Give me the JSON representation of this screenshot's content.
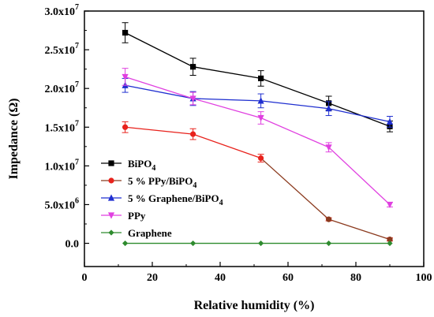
{
  "chart_data": {
    "type": "line",
    "xlabel": "Relative humidity (%)",
    "ylabel": "Impedance  (Ω)",
    "xlim": [
      0,
      100
    ],
    "ylim": [
      -3000000,
      30000000
    ],
    "x_ticks": [
      0,
      20,
      40,
      60,
      80,
      100
    ],
    "x_tick_labels": [
      "0",
      "20",
      "40",
      "60",
      "80",
      "100"
    ],
    "y_ticks": [
      0,
      5000000,
      10000000,
      15000000,
      20000000,
      25000000,
      30000000
    ],
    "y_tick_labels": [
      {
        "mantissa": "0.0",
        "exp": ""
      },
      {
        "mantissa": "5.0x10",
        "exp": "6"
      },
      {
        "mantissa": "1.0x10",
        "exp": "7"
      },
      {
        "mantissa": "1.5x10",
        "exp": "7"
      },
      {
        "mantissa": "2.0x10",
        "exp": "7"
      },
      {
        "mantissa": "2.5x10",
        "exp": "7"
      },
      {
        "mantissa": "3.0x10",
        "exp": "7"
      }
    ],
    "grid": false,
    "legend_position": "lower-left",
    "x": [
      12,
      32,
      52,
      72,
      90
    ],
    "series": [
      {
        "name": "BiPO",
        "name_sub": "4",
        "color": "#000000",
        "marker": "square",
        "values": [
          27200000,
          22800000,
          21300000,
          18100000,
          15100000
        ],
        "errors": [
          1300000,
          1100000,
          1000000,
          900000,
          700000
        ]
      },
      {
        "name": "5 % PPy/BiPO",
        "name_sub": "4",
        "color": "#e8221c",
        "color2": "#8b3a1e",
        "marker": "circle",
        "values": [
          15000000,
          14100000,
          11000000,
          3100000,
          500000
        ],
        "errors": [
          700000,
          700000,
          500000,
          200000,
          200000
        ]
      },
      {
        "name": "5 % Graphene/BiPO",
        "name_sub": "4",
        "color": "#1f2fd0",
        "marker": "triangle-up",
        "values": [
          20400000,
          18700000,
          18400000,
          17400000,
          15700000
        ],
        "errors": [
          900000,
          900000,
          900000,
          900000,
          700000
        ]
      },
      {
        "name": "PPy",
        "name_sub": "",
        "color": "#e040e0",
        "marker": "triangle-down",
        "values": [
          21500000,
          18700000,
          16200000,
          12400000,
          5000000
        ],
        "errors": [
          1100000,
          800000,
          800000,
          600000,
          300000
        ]
      },
      {
        "name": "Graphene",
        "name_sub": "",
        "color": "#2e8b2e",
        "marker": "diamond",
        "values": [
          0,
          0,
          0,
          0,
          0
        ],
        "errors": [
          0,
          0,
          0,
          0,
          0
        ]
      }
    ]
  }
}
